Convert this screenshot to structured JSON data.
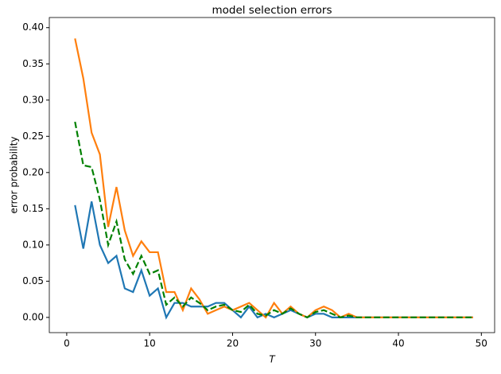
{
  "chart_data": {
    "type": "line",
    "title": "model selection errors",
    "x_label": "T",
    "y_label": "error probability",
    "x": [
      1,
      2,
      3,
      4,
      5,
      6,
      7,
      8,
      9,
      10,
      11,
      12,
      13,
      14,
      15,
      16,
      17,
      18,
      19,
      20,
      21,
      22,
      23,
      24,
      25,
      26,
      27,
      28,
      29,
      30,
      31,
      32,
      33,
      34,
      35,
      36,
      37,
      38,
      39,
      40,
      41,
      42,
      43,
      44,
      45,
      46,
      47,
      48,
      49
    ],
    "series": [
      {
        "color": "#1f77b4",
        "dash": false,
        "values": [
          0.155,
          0.095,
          0.16,
          0.1,
          0.075,
          0.085,
          0.04,
          0.035,
          0.065,
          0.03,
          0.04,
          0.0,
          0.02,
          0.02,
          0.015,
          0.015,
          0.015,
          0.02,
          0.02,
          0.01,
          0.0,
          0.015,
          0.0,
          0.005,
          0.0,
          0.005,
          0.01,
          0.005,
          0.0,
          0.005,
          0.005,
          0.0,
          0.0,
          0,
          0,
          0,
          0,
          0,
          0,
          0,
          0,
          0,
          0,
          0,
          0,
          0,
          0,
          0,
          0
        ]
      },
      {
        "color": "#ff7f0e",
        "dash": false,
        "values": [
          0.385,
          0.33,
          0.255,
          0.225,
          0.125,
          0.18,
          0.12,
          0.085,
          0.105,
          0.09,
          0.09,
          0.035,
          0.035,
          0.01,
          0.04,
          0.025,
          0.005,
          0.01,
          0.015,
          0.01,
          0.015,
          0.02,
          0.01,
          0.0,
          0.02,
          0.005,
          0.015,
          0.005,
          0.0,
          0.01,
          0.015,
          0.01,
          0.0,
          0.005,
          0,
          0,
          0,
          0,
          0,
          0,
          0,
          0,
          0,
          0,
          0,
          0,
          0,
          0,
          0
        ]
      },
      {
        "color": "#008000",
        "dash": true,
        "values": [
          0.27,
          0.21,
          0.2075,
          0.1625,
          0.1,
          0.1325,
          0.08,
          0.06,
          0.085,
          0.06,
          0.065,
          0.0175,
          0.0275,
          0.015,
          0.0275,
          0.02,
          0.01,
          0.015,
          0.0175,
          0.01,
          0.0075,
          0.0175,
          0.005,
          0.0025,
          0.01,
          0.005,
          0.0125,
          0.005,
          0.0,
          0.0075,
          0.01,
          0.005,
          0.0,
          0.0025,
          0,
          0,
          0,
          0,
          0,
          0,
          0,
          0,
          0,
          0,
          0,
          0,
          0,
          0,
          0
        ]
      }
    ],
    "xlim": [
      -2.1,
      51.6
    ],
    "ylim": [
      -0.021,
      0.414
    ],
    "xticks": [
      0,
      10,
      20,
      30,
      40,
      50
    ],
    "yticks": [
      {
        "value": 0,
        "label": "0.00"
      },
      {
        "value": 0.05,
        "label": "0.05"
      },
      {
        "value": 0.1,
        "label": "0.10"
      },
      {
        "value": 0.15,
        "label": "0.15"
      },
      {
        "value": 0.2,
        "label": "0.20"
      },
      {
        "value": 0.25,
        "label": "0.25"
      },
      {
        "value": 0.3,
        "label": "0.30"
      },
      {
        "value": 0.35,
        "label": "0.35"
      },
      {
        "value": 0.4,
        "label": "0.40"
      }
    ]
  }
}
